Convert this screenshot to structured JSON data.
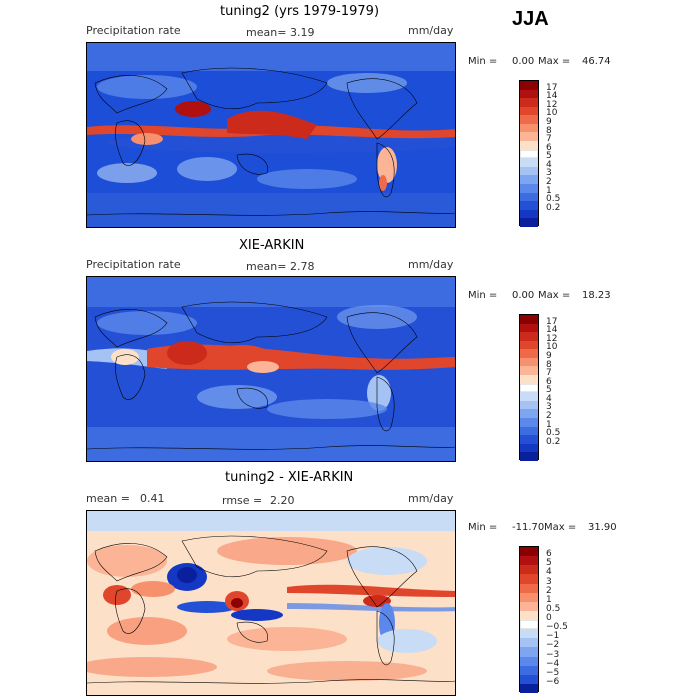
{
  "season": "JJA",
  "panels": [
    {
      "title": "tuning2 (yrs 1979-1979)",
      "left_label": "Precipitation rate",
      "mean_label": "mean=",
      "mean_value": "3.19",
      "units": "mm/day",
      "min_label": "Min =",
      "min_value": "0.00",
      "max_label": "Max =",
      "max_value": "46.74",
      "colorbar_ticks": [
        "17",
        "14",
        "12",
        "10",
        "9",
        "8",
        "7",
        "6",
        "5",
        "4",
        "3",
        "2",
        "1",
        "0.5",
        "0.2"
      ],
      "colors": [
        "#8b0000",
        "#b01010",
        "#cc2a1a",
        "#e0462c",
        "#ef6a48",
        "#f6906d",
        "#fbb496",
        "#fde0c8",
        "#ffffff",
        "#c8dcf6",
        "#a4c2f4",
        "#7ea6f0",
        "#5b88ea",
        "#3d6be0",
        "#2450d6",
        "#1437c4",
        "#0a1f9c"
      ]
    },
    {
      "title": "XIE-ARKIN",
      "left_label": "Precipitation rate",
      "mean_label": "mean=",
      "mean_value": "2.78",
      "units": "mm/day",
      "min_label": "Min =",
      "min_value": "0.00",
      "max_label": "Max =",
      "max_value": "18.23",
      "colorbar_ticks": [
        "17",
        "14",
        "12",
        "10",
        "9",
        "8",
        "7",
        "6",
        "5",
        "4",
        "3",
        "2",
        "1",
        "0.5",
        "0.2"
      ],
      "colors": [
        "#8b0000",
        "#b01010",
        "#cc2a1a",
        "#e0462c",
        "#ef6a48",
        "#f6906d",
        "#fbb496",
        "#fde0c8",
        "#ffffff",
        "#c8dcf6",
        "#a4c2f4",
        "#7ea6f0",
        "#5b88ea",
        "#3d6be0",
        "#2450d6",
        "#1437c4",
        "#0a1f9c"
      ]
    },
    {
      "title": "tuning2 - XIE-ARKIN",
      "left_label": "mean =",
      "left_value": "0.41",
      "rmse_label": "rmse =",
      "rmse_value": "2.20",
      "units": "mm/day",
      "min_label": "Min =",
      "min_value": "-11.70",
      "max_label": "Max =",
      "max_value": "31.90",
      "colorbar_ticks": [
        "6",
        "5",
        "4",
        "3",
        "2",
        "1",
        "0.5",
        "0",
        "−0.5",
        "−1",
        "−2",
        "−3",
        "−4",
        "−5",
        "−6"
      ],
      "colors": [
        "#8b0000",
        "#b01010",
        "#cc2a1a",
        "#e0462c",
        "#ef6a48",
        "#f6906d",
        "#fbb496",
        "#fde0c8",
        "#ffffff",
        "#c8dcf6",
        "#a4c2f4",
        "#7ea6f0",
        "#5b88ea",
        "#3d6be0",
        "#2450d6",
        "#0a1f9c"
      ]
    }
  ]
}
